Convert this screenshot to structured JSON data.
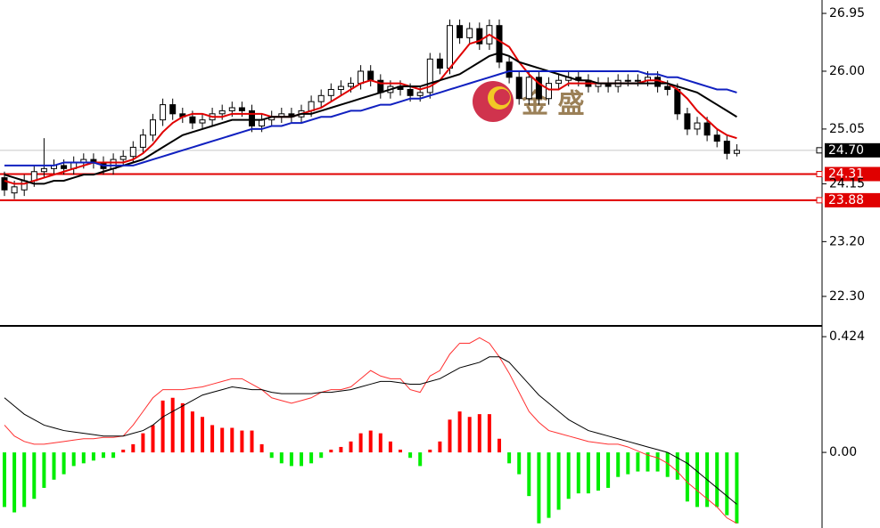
{
  "chart_data": [
    {
      "type": "candlestick",
      "open": [
        24.25,
        24.0,
        24.05,
        24.2,
        24.35,
        24.4,
        24.45,
        24.4,
        24.5,
        24.55,
        24.5,
        24.4,
        24.55,
        24.6,
        24.75,
        24.95,
        25.2,
        25.45,
        25.3,
        25.25,
        25.15,
        25.2,
        25.3,
        25.35,
        25.4,
        25.35,
        25.1,
        25.2,
        25.25,
        25.3,
        25.25,
        25.35,
        25.5,
        25.6,
        25.7,
        25.75,
        25.8,
        26.0,
        25.85,
        25.65,
        25.75,
        25.7,
        25.6,
        25.65,
        26.2,
        26.05,
        26.75,
        26.55,
        26.7,
        26.45,
        26.75,
        26.15,
        25.9,
        25.55,
        25.9,
        25.55,
        25.8,
        25.85,
        25.9,
        25.85,
        25.75,
        25.8,
        25.75,
        25.85,
        25.85,
        25.85,
        25.9,
        25.75,
        25.7,
        25.3,
        25.05,
        25.15,
        24.95,
        24.85,
        24.65
      ],
      "high": [
        24.35,
        24.2,
        24.3,
        24.45,
        24.9,
        24.55,
        24.55,
        24.6,
        24.65,
        24.65,
        24.6,
        24.65,
        24.7,
        24.85,
        25.05,
        25.3,
        25.55,
        25.55,
        25.4,
        25.35,
        25.3,
        25.4,
        25.45,
        25.5,
        25.5,
        25.45,
        25.3,
        25.35,
        25.4,
        25.4,
        25.45,
        25.6,
        25.7,
        25.8,
        25.85,
        25.9,
        26.1,
        26.1,
        25.95,
        25.85,
        25.85,
        25.8,
        25.75,
        26.3,
        26.3,
        26.85,
        26.85,
        26.8,
        26.8,
        26.85,
        26.85,
        26.25,
        26.0,
        26.0,
        26.0,
        25.9,
        25.95,
        26.0,
        26.0,
        25.95,
        25.9,
        25.9,
        25.95,
        25.95,
        25.95,
        26.0,
        26.0,
        25.85,
        25.8,
        25.4,
        25.25,
        25.25,
        25.05,
        24.95,
        24.8
      ],
      "low": [
        23.95,
        23.9,
        23.95,
        24.1,
        24.25,
        24.3,
        24.3,
        24.3,
        24.4,
        24.4,
        24.3,
        24.3,
        24.45,
        24.5,
        24.65,
        24.85,
        25.1,
        25.2,
        25.15,
        25.05,
        25.05,
        25.1,
        25.2,
        25.25,
        25.25,
        25.0,
        25.0,
        25.1,
        25.15,
        25.15,
        25.15,
        25.25,
        25.4,
        25.5,
        25.6,
        25.65,
        25.7,
        25.75,
        25.55,
        25.55,
        25.6,
        25.5,
        25.5,
        25.55,
        25.95,
        25.95,
        26.45,
        26.45,
        26.35,
        26.35,
        26.05,
        25.8,
        25.45,
        25.45,
        25.45,
        25.45,
        25.7,
        25.75,
        25.75,
        25.65,
        25.65,
        25.65,
        25.65,
        25.75,
        25.75,
        25.75,
        25.65,
        25.6,
        25.2,
        24.95,
        24.95,
        24.85,
        24.75,
        24.55,
        24.6
      ],
      "close": [
        24.05,
        24.1,
        24.2,
        24.35,
        24.4,
        24.45,
        24.4,
        24.5,
        24.55,
        24.5,
        24.4,
        24.55,
        24.6,
        24.75,
        24.95,
        25.2,
        25.45,
        25.3,
        25.25,
        25.15,
        25.2,
        25.3,
        25.35,
        25.4,
        25.35,
        25.1,
        25.2,
        25.25,
        25.3,
        25.25,
        25.35,
        25.5,
        25.6,
        25.7,
        25.75,
        25.8,
        26.0,
        25.85,
        25.65,
        25.75,
        25.7,
        25.6,
        25.65,
        26.2,
        26.05,
        26.75,
        26.55,
        26.7,
        26.45,
        26.75,
        26.15,
        25.9,
        25.55,
        25.9,
        25.55,
        25.8,
        25.85,
        25.9,
        25.85,
        25.75,
        25.8,
        25.75,
        25.85,
        25.85,
        25.85,
        25.9,
        25.75,
        25.7,
        25.3,
        25.05,
        25.15,
        24.95,
        24.85,
        24.65,
        24.7
      ],
      "up_color": "#ffffff",
      "down_color": "#000000",
      "lines": [
        {
          "color": "#e00000",
          "values": [
            24.2,
            24.15,
            24.15,
            24.2,
            24.25,
            24.3,
            24.35,
            24.4,
            24.45,
            24.5,
            24.5,
            24.5,
            24.5,
            24.55,
            24.65,
            24.8,
            25.0,
            25.15,
            25.25,
            25.3,
            25.3,
            25.25,
            25.25,
            25.3,
            25.3,
            25.3,
            25.3,
            25.25,
            25.25,
            25.25,
            25.3,
            25.35,
            25.4,
            25.5,
            25.6,
            25.7,
            25.8,
            25.85,
            25.8,
            25.8,
            25.8,
            25.75,
            25.7,
            25.75,
            25.85,
            26.05,
            26.25,
            26.45,
            26.5,
            26.6,
            26.5,
            26.4,
            26.15,
            25.95,
            25.8,
            25.7,
            25.7,
            25.8,
            25.8,
            25.8,
            25.8,
            25.8,
            25.8,
            25.8,
            25.8,
            25.85,
            25.85,
            25.8,
            25.7,
            25.55,
            25.35,
            25.2,
            25.05,
            24.95,
            24.9
          ]
        },
        {
          "color": "#000000",
          "values": [
            24.3,
            24.25,
            24.2,
            24.15,
            24.15,
            24.2,
            24.2,
            24.25,
            24.3,
            24.3,
            24.35,
            24.4,
            24.45,
            24.5,
            24.55,
            24.65,
            24.75,
            24.85,
            24.95,
            25.0,
            25.05,
            25.1,
            25.15,
            25.2,
            25.2,
            25.2,
            25.2,
            25.25,
            25.25,
            25.25,
            25.3,
            25.3,
            25.35,
            25.4,
            25.45,
            25.5,
            25.55,
            25.6,
            25.65,
            25.7,
            25.75,
            25.75,
            25.75,
            25.8,
            25.85,
            25.9,
            25.95,
            26.05,
            26.15,
            26.25,
            26.3,
            26.25,
            26.15,
            26.1,
            26.05,
            26.0,
            25.95,
            25.9,
            25.85,
            25.85,
            25.8,
            25.8,
            25.8,
            25.8,
            25.8,
            25.8,
            25.8,
            25.8,
            25.75,
            25.7,
            25.65,
            25.55,
            25.45,
            25.35,
            25.25
          ]
        },
        {
          "color": "#1020c0",
          "values": [
            24.45,
            24.45,
            24.45,
            24.45,
            24.45,
            24.45,
            24.5,
            24.5,
            24.5,
            24.5,
            24.45,
            24.45,
            24.45,
            24.45,
            24.5,
            24.55,
            24.6,
            24.65,
            24.7,
            24.75,
            24.8,
            24.85,
            24.9,
            24.95,
            25.0,
            25.05,
            25.05,
            25.1,
            25.1,
            25.15,
            25.15,
            25.2,
            25.25,
            25.25,
            25.3,
            25.35,
            25.35,
            25.4,
            25.45,
            25.45,
            25.5,
            25.55,
            25.55,
            25.6,
            25.65,
            25.7,
            25.75,
            25.8,
            25.85,
            25.9,
            25.95,
            26.0,
            26.0,
            26.0,
            26.0,
            26.0,
            26.0,
            26.0,
            26.0,
            26.0,
            26.0,
            26.0,
            26.0,
            26.0,
            26.0,
            25.95,
            25.95,
            25.9,
            25.9,
            25.85,
            25.8,
            25.75,
            25.7,
            25.7,
            25.65
          ]
        }
      ],
      "ylim": [
        21.83,
        27.17
      ],
      "yticks": [
        26.95,
        {
          "value": 26,
          "label": "26.00"
        },
        25.05,
        24.15,
        {
          "value": 23.2,
          "label": "23.20"
        },
        {
          "value": 22.3,
          "label": "22.30"
        }
      ],
      "price_lines": [
        {
          "value": 24.7,
          "label": "24.70",
          "color": "#c8c8c8",
          "tag": "#000000"
        },
        {
          "value": 24.31,
          "color": "#e00000",
          "tag": "#e00000"
        },
        {
          "value": 23.88,
          "color": "#e00000",
          "tag": "#e00000"
        }
      ],
      "watermark": "金 盛"
    },
    {
      "type": "macd",
      "values": [
        -0.2,
        -0.22,
        -0.2,
        -0.17,
        -0.13,
        -0.1,
        -0.08,
        -0.05,
        -0.04,
        -0.03,
        -0.02,
        -0.02,
        0.01,
        0.03,
        0.07,
        0.1,
        0.19,
        0.2,
        0.18,
        0.15,
        0.13,
        0.1,
        0.09,
        0.09,
        0.08,
        0.08,
        0.03,
        -0.02,
        -0.04,
        -0.05,
        -0.05,
        -0.04,
        -0.02,
        0.01,
        0.02,
        0.04,
        0.07,
        0.08,
        0.07,
        0.04,
        0.01,
        -0.02,
        -0.05,
        0.01,
        0.04,
        0.12,
        0.15,
        0.13,
        0.14,
        0.14,
        0.05,
        -0.04,
        -0.08,
        -0.16,
        -0.26,
        -0.24,
        -0.21,
        -0.17,
        -0.15,
        -0.15,
        -0.14,
        -0.13,
        -0.09,
        -0.08,
        -0.07,
        -0.07,
        -0.07,
        -0.09,
        -0.1,
        -0.18,
        -0.2,
        -0.2,
        -0.2,
        -0.23,
        -0.26
      ],
      "up_color": "#ff0000",
      "down_color": "#00ee00",
      "lines": [
        {
          "color": "#ff3030",
          "values": [
            0.1,
            0.06,
            0.04,
            0.03,
            0.03,
            0.035,
            0.04,
            0.045,
            0.05,
            0.05,
            0.055,
            0.055,
            0.06,
            0.1,
            0.15,
            0.2,
            0.23,
            0.23,
            0.23,
            0.235,
            0.24,
            0.25,
            0.26,
            0.27,
            0.27,
            0.25,
            0.23,
            0.2,
            0.19,
            0.18,
            0.19,
            0.2,
            0.22,
            0.23,
            0.23,
            0.24,
            0.27,
            0.3,
            0.28,
            0.27,
            0.27,
            0.23,
            0.22,
            0.28,
            0.3,
            0.36,
            0.4,
            0.4,
            0.42,
            0.4,
            0.35,
            0.29,
            0.22,
            0.15,
            0.11,
            0.08,
            0.07,
            0.06,
            0.05,
            0.04,
            0.035,
            0.03,
            0.03,
            0.02,
            0.005,
            -0.01,
            -0.02,
            -0.04,
            -0.07,
            -0.11,
            -0.14,
            -0.17,
            -0.2,
            -0.24,
            -0.26
          ]
        },
        {
          "color": "#000000",
          "values": [
            0.2,
            0.17,
            0.14,
            0.12,
            0.1,
            0.09,
            0.08,
            0.075,
            0.07,
            0.065,
            0.06,
            0.06,
            0.06,
            0.07,
            0.08,
            0.1,
            0.13,
            0.15,
            0.17,
            0.19,
            0.21,
            0.22,
            0.23,
            0.24,
            0.235,
            0.23,
            0.23,
            0.22,
            0.215,
            0.215,
            0.215,
            0.215,
            0.22,
            0.22,
            0.225,
            0.23,
            0.24,
            0.25,
            0.26,
            0.26,
            0.255,
            0.25,
            0.25,
            0.26,
            0.27,
            0.29,
            0.31,
            0.32,
            0.33,
            0.35,
            0.35,
            0.33,
            0.29,
            0.25,
            0.21,
            0.18,
            0.15,
            0.12,
            0.1,
            0.08,
            0.07,
            0.06,
            0.05,
            0.04,
            0.03,
            0.02,
            0.01,
            0.0,
            -0.02,
            -0.04,
            -0.07,
            -0.1,
            -0.13,
            -0.16,
            -0.19
          ]
        }
      ],
      "ylim": [
        -0.277,
        0.457
      ],
      "yticks": [
        0.424,
        {
          "value": 0,
          "label": "0.00"
        }
      ]
    }
  ]
}
